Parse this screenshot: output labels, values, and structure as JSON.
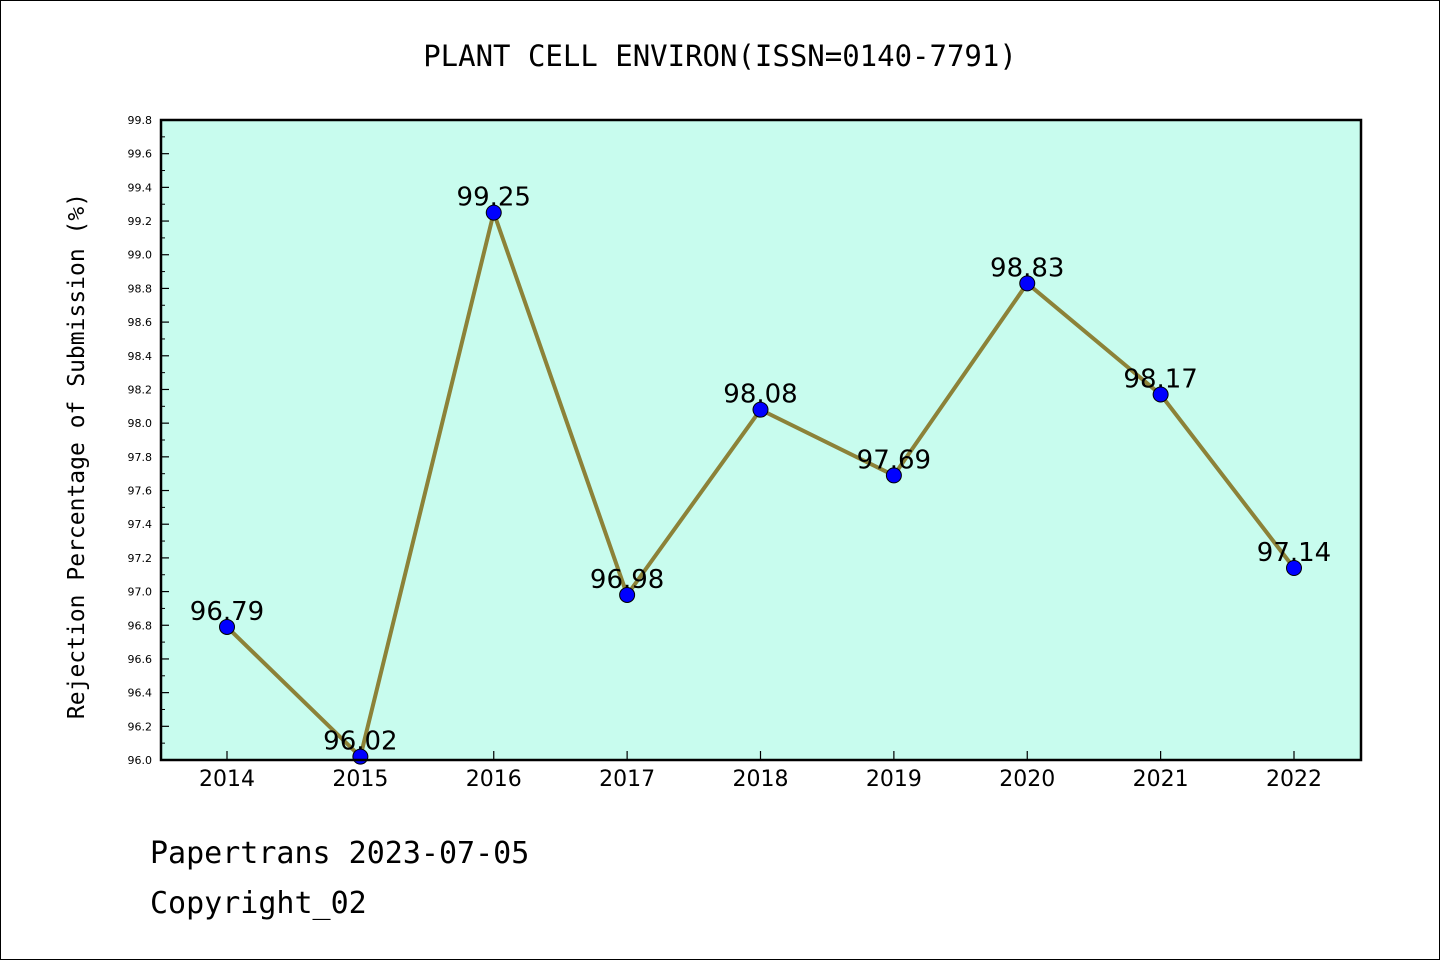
{
  "chart_data": {
    "type": "line",
    "title": "PLANT CELL ENVIRON(ISSN=0140-7791)",
    "xlabel": "",
    "ylabel": "Rejection Percentage of Submission (%)",
    "categories": [
      "2014",
      "2015",
      "2016",
      "2017",
      "2018",
      "2019",
      "2020",
      "2021",
      "2022"
    ],
    "values": [
      96.79,
      96.02,
      99.25,
      96.98,
      98.08,
      97.69,
      98.83,
      98.17,
      97.14
    ],
    "value_labels": [
      "96.79",
      "96.02",
      "99.25",
      "96.98",
      "98.08",
      "97.69",
      "98.83",
      "98.17",
      "97.14"
    ],
    "ylim": [
      96.0,
      99.8
    ],
    "yticks": [
      "96.0",
      "96.2",
      "96.4",
      "96.6",
      "96.8",
      "97.0",
      "97.2",
      "97.4",
      "97.6",
      "97.8",
      "98.0",
      "98.2",
      "98.4",
      "98.6",
      "98.8",
      "99.0",
      "99.2",
      "99.4",
      "99.6",
      "99.8"
    ],
    "grid": false,
    "colors": {
      "plot_background": "#c8fcee",
      "line": "#8c8238",
      "marker": "#0000ff"
    }
  },
  "footer": {
    "source": "Papertrans 2023-07-05",
    "copyright": "Copyright_02"
  }
}
